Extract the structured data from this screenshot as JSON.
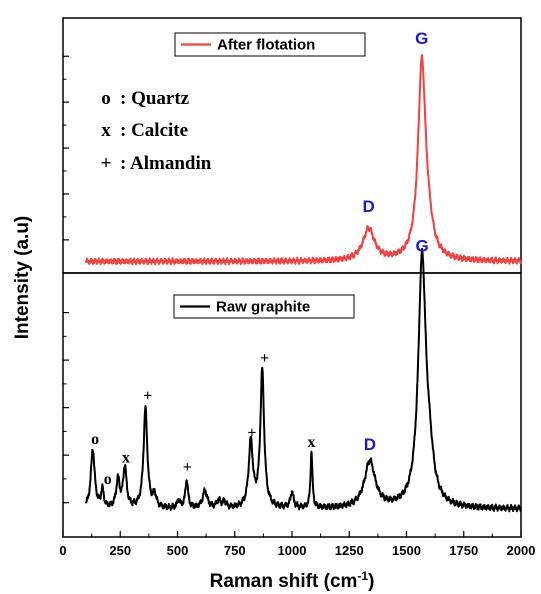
{
  "chart_data": {
    "type": "line",
    "xlabel": "Raman shift (cm",
    "xlabel_sup": "-1",
    "xlabel_close": ")",
    "ylabel": "Intensity (a.u)",
    "xlim": [
      0,
      2000
    ],
    "x_ticks": [
      "0",
      "250",
      "500",
      "750",
      "1000",
      "1250",
      "1500",
      "1750",
      "2000"
    ],
    "x_tick_values": [
      0,
      250,
      500,
      750,
      1000,
      1250,
      1500,
      1750,
      2000
    ],
    "mineral_legend": [
      {
        "symbol": "o",
        "text": ": Quartz"
      },
      {
        "symbol": "x",
        "text": ": Calcite"
      },
      {
        "symbol": "+",
        "text": ": Almandin"
      }
    ],
    "panels": [
      {
        "series_name": "After flotation",
        "color": "#f04040",
        "ylim": [
          -0.2,
          4.2
        ],
        "baseline": 0,
        "peaks": [
          {
            "x": 1335,
            "height": 0.55,
            "width": 30
          },
          {
            "x": 1567,
            "height": 3.35,
            "width": 20
          },
          {
            "x": 1595,
            "height": 0.35,
            "width": 25
          }
        ],
        "labels": [
          {
            "text": "D",
            "x": 1335,
            "y": 0.85,
            "kind": "peak"
          },
          {
            "text": "G",
            "x": 1567,
            "y": 3.75,
            "kind": "peak"
          }
        ]
      },
      {
        "series_name": "Raw graphite",
        "color": "#000000",
        "ylim": [
          -0.45,
          3.8
        ],
        "baseline": 0,
        "peaks": [
          {
            "x": 130,
            "height": 0.95,
            "width": 10
          },
          {
            "x": 172,
            "height": 0.28,
            "width": 7
          },
          {
            "x": 240,
            "height": 0.45,
            "width": 9
          },
          {
            "x": 270,
            "height": 0.65,
            "width": 9
          },
          {
            "x": 360,
            "height": 1.6,
            "width": 10
          },
          {
            "x": 400,
            "height": 0.2,
            "width": 8
          },
          {
            "x": 505,
            "height": 0.12,
            "width": 8
          },
          {
            "x": 540,
            "height": 0.45,
            "width": 7
          },
          {
            "x": 620,
            "height": 0.28,
            "width": 12
          },
          {
            "x": 680,
            "height": 0.12,
            "width": 10
          },
          {
            "x": 705,
            "height": 0.1,
            "width": 8
          },
          {
            "x": 820,
            "height": 1.05,
            "width": 11
          },
          {
            "x": 870,
            "height": 2.2,
            "width": 10
          },
          {
            "x": 1000,
            "height": 0.25,
            "width": 8
          },
          {
            "x": 1085,
            "height": 0.9,
            "width": 5
          },
          {
            "x": 1340,
            "height": 0.75,
            "width": 28
          },
          {
            "x": 1568,
            "height": 3.95,
            "width": 20
          },
          {
            "x": 1600,
            "height": 0.55,
            "width": 22
          }
        ],
        "labels": [
          {
            "text": "o",
            "x": 140,
            "y": 1.05,
            "kind": "mineral"
          },
          {
            "text": "o",
            "x": 195,
            "y": 0.4,
            "kind": "mineral"
          },
          {
            "text": "x",
            "x": 275,
            "y": 0.75,
            "kind": "mineral"
          },
          {
            "text": "+",
            "x": 370,
            "y": 1.75,
            "kind": "mineral"
          },
          {
            "text": "+",
            "x": 543,
            "y": 0.6,
            "kind": "mineral"
          },
          {
            "text": "+",
            "x": 825,
            "y": 1.15,
            "kind": "mineral"
          },
          {
            "text": "+",
            "x": 880,
            "y": 2.35,
            "kind": "mineral"
          },
          {
            "text": "x",
            "x": 1085,
            "y": 1.0,
            "kind": "mineral"
          },
          {
            "text": "D",
            "x": 1340,
            "y": 0.95,
            "kind": "peak"
          },
          {
            "text": "G",
            "x": 1568,
            "y": 4.15,
            "kind": "peak"
          }
        ]
      }
    ]
  }
}
